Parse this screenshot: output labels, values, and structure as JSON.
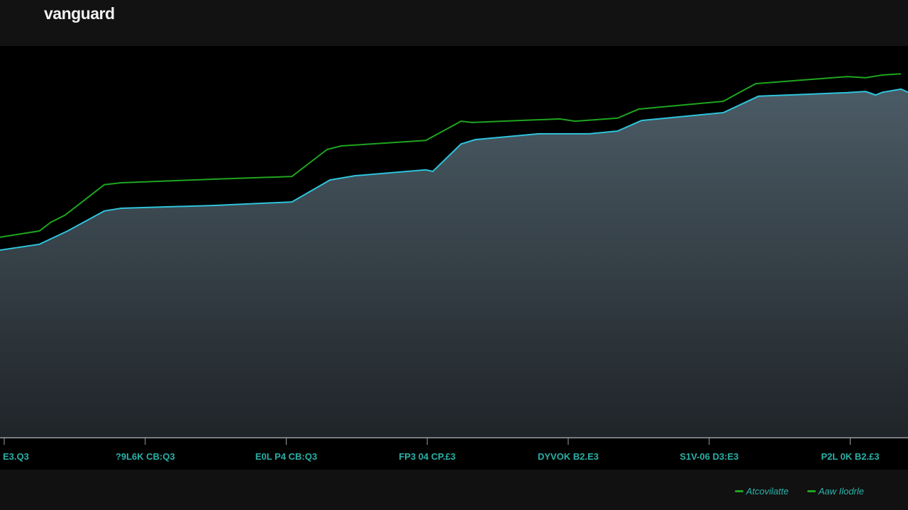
{
  "header": {
    "title": "vanguard"
  },
  "chart_data": {
    "type": "line",
    "title": "",
    "xlabel": "",
    "ylabel": "",
    "xlim": [
      -0.03,
      6.41
    ],
    "ylim": [
      0,
      100
    ],
    "grid": false,
    "legend_placement": "bottom-right",
    "x_tick_values": [
      0,
      1,
      2,
      3,
      4,
      5,
      6
    ],
    "x_tick_labels": [
      "E3.Q3",
      "?9L6K CB:Q3",
      "E0L P4 CB:Q3",
      "FP3 04 CP.£3",
      "DYVOK B2.E3",
      "S1V-06 D3:E3",
      "P2L 0K B2.£3"
    ],
    "series": [
      {
        "name": "Atcovilatte",
        "color": "#1fa51f",
        "x": [
          -0.03,
          0.25,
          0.33,
          0.43,
          0.71,
          0.83,
          1.48,
          2.04,
          2.29,
          2.39,
          2.99,
          3.24,
          3.32,
          3.94,
          4.05,
          4.35,
          4.5,
          5.1,
          5.33,
          5.98,
          6.11,
          6.23,
          6.36
        ],
        "y": [
          51.2,
          52.8,
          55.0,
          56.8,
          64.6,
          65.1,
          66.0,
          66.7,
          73.6,
          74.5,
          75.9,
          80.8,
          80.5,
          81.4,
          80.8,
          81.6,
          83.9,
          85.9,
          90.4,
          92.2,
          91.9,
          92.6,
          92.9
        ]
      },
      {
        "name": "Aaw Ilodrle",
        "color": "#2ec4dc",
        "fill": true,
        "x": [
          -0.03,
          0.25,
          0.45,
          0.71,
          0.83,
          1.48,
          2.04,
          2.31,
          2.49,
          2.99,
          3.04,
          3.24,
          3.34,
          3.79,
          4.15,
          4.35,
          4.52,
          5.1,
          5.35,
          5.98,
          6.11,
          6.18,
          6.23,
          6.36,
          6.41
        ],
        "y": [
          47.9,
          49.4,
          52.8,
          57.9,
          58.6,
          59.3,
          60.2,
          65.8,
          66.9,
          68.4,
          68.0,
          75.0,
          76.1,
          77.6,
          77.6,
          78.3,
          81.0,
          83.0,
          87.2,
          88.1,
          88.4,
          87.5,
          88.2,
          89.0,
          88.2
        ]
      }
    ]
  },
  "legend": {
    "items": [
      "Atcovilatte",
      "Aaw Ilodrle"
    ],
    "marker_color": "#1fa51f"
  }
}
